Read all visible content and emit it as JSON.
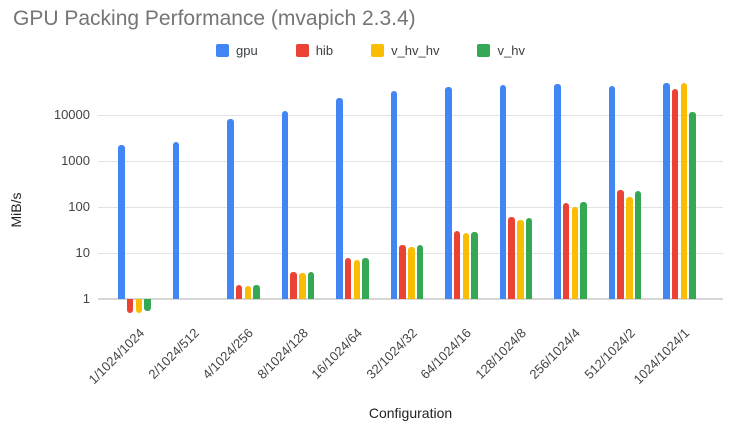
{
  "chart_data": {
    "type": "bar",
    "title": "GPU Packing Performance (mvapich 2.3.4)",
    "xlabel": "Configuration",
    "ylabel": "MiB/s",
    "y_scale": "log",
    "y_ticks": [
      1,
      10,
      100,
      1000,
      10000
    ],
    "ylim": [
      0.4,
      55000
    ],
    "grid": true,
    "legend_position": "top",
    "categories": [
      "1/1024/1024",
      "2/1024/512",
      "4/1024/256",
      "8/1024/128",
      "16/1024/64",
      "32/1024/32",
      "64/1024/16",
      "128/1024/8",
      "256/1024/4",
      "512/1024/2",
      "1024/1024/1"
    ],
    "series": [
      {
        "name": "gpu",
        "color": "#4285F4",
        "values": [
          2200,
          2600,
          8000,
          12000,
          23000,
          33000,
          41000,
          45000,
          48000,
          43000,
          49000
        ]
      },
      {
        "name": "hib",
        "color": "#EA4335",
        "values": [
          0.5,
          null,
          2.0,
          3.8,
          7.6,
          15,
          30,
          60,
          120,
          240,
          36000
        ]
      },
      {
        "name": "v_hv_hv",
        "color": "#FBBC04",
        "values": [
          0.5,
          null,
          1.9,
          3.6,
          7.2,
          13.5,
          27,
          52,
          98,
          165,
          50000
        ]
      },
      {
        "name": "v_hv",
        "color": "#34A853",
        "values": [
          0.55,
          null,
          2.0,
          3.8,
          7.6,
          15,
          29,
          58,
          130,
          220,
          11500
        ]
      }
    ]
  }
}
